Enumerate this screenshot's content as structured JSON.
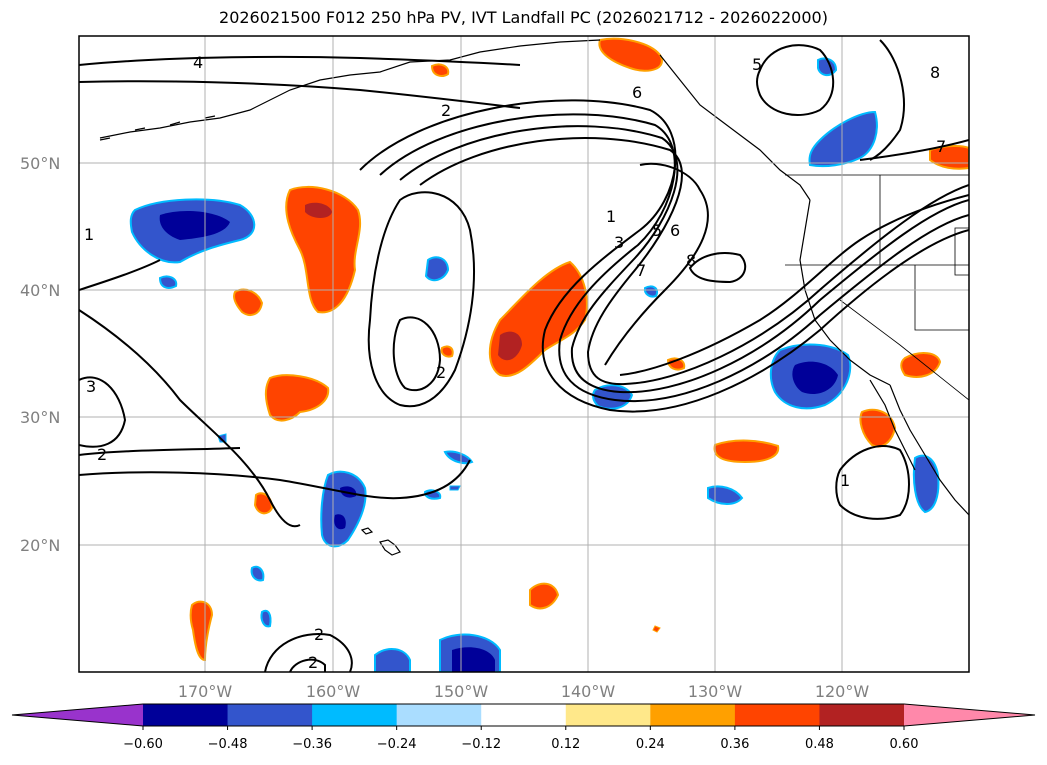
{
  "title": "2026021500 F012 250 hPa PV, IVT Landfall PC (2026021712 - 2026022000)",
  "lat_labels": [
    "50°N",
    "40°N",
    "30°N",
    "20°N"
  ],
  "lon_labels": [
    "170°W",
    "160°W",
    "150°W",
    "140°W",
    "130°W",
    "120°W"
  ],
  "contour_labels": [
    "4",
    "2",
    "6",
    "5",
    "8",
    "7",
    "1",
    "3",
    "5",
    "6",
    "7",
    "8",
    "2",
    "3",
    "2",
    "1",
    "1",
    "2",
    "2"
  ],
  "colorbar": {
    "ticks": [
      "−0.60",
      "−0.48",
      "−0.36",
      "−0.24",
      "−0.12",
      "0.12",
      "0.24",
      "0.36",
      "0.48",
      "0.60"
    ],
    "colors": [
      "#9933cc",
      "#000099",
      "#3355cc",
      "#00bbff",
      "#aaddff",
      "#ffffff",
      "#ffe88a",
      "#ffa000",
      "#ff4400",
      "#b22222",
      "#ff88aa"
    ]
  },
  "colors": {
    "contour": "#000000",
    "grid": "#b0b0b0",
    "coast": "#000000"
  }
}
